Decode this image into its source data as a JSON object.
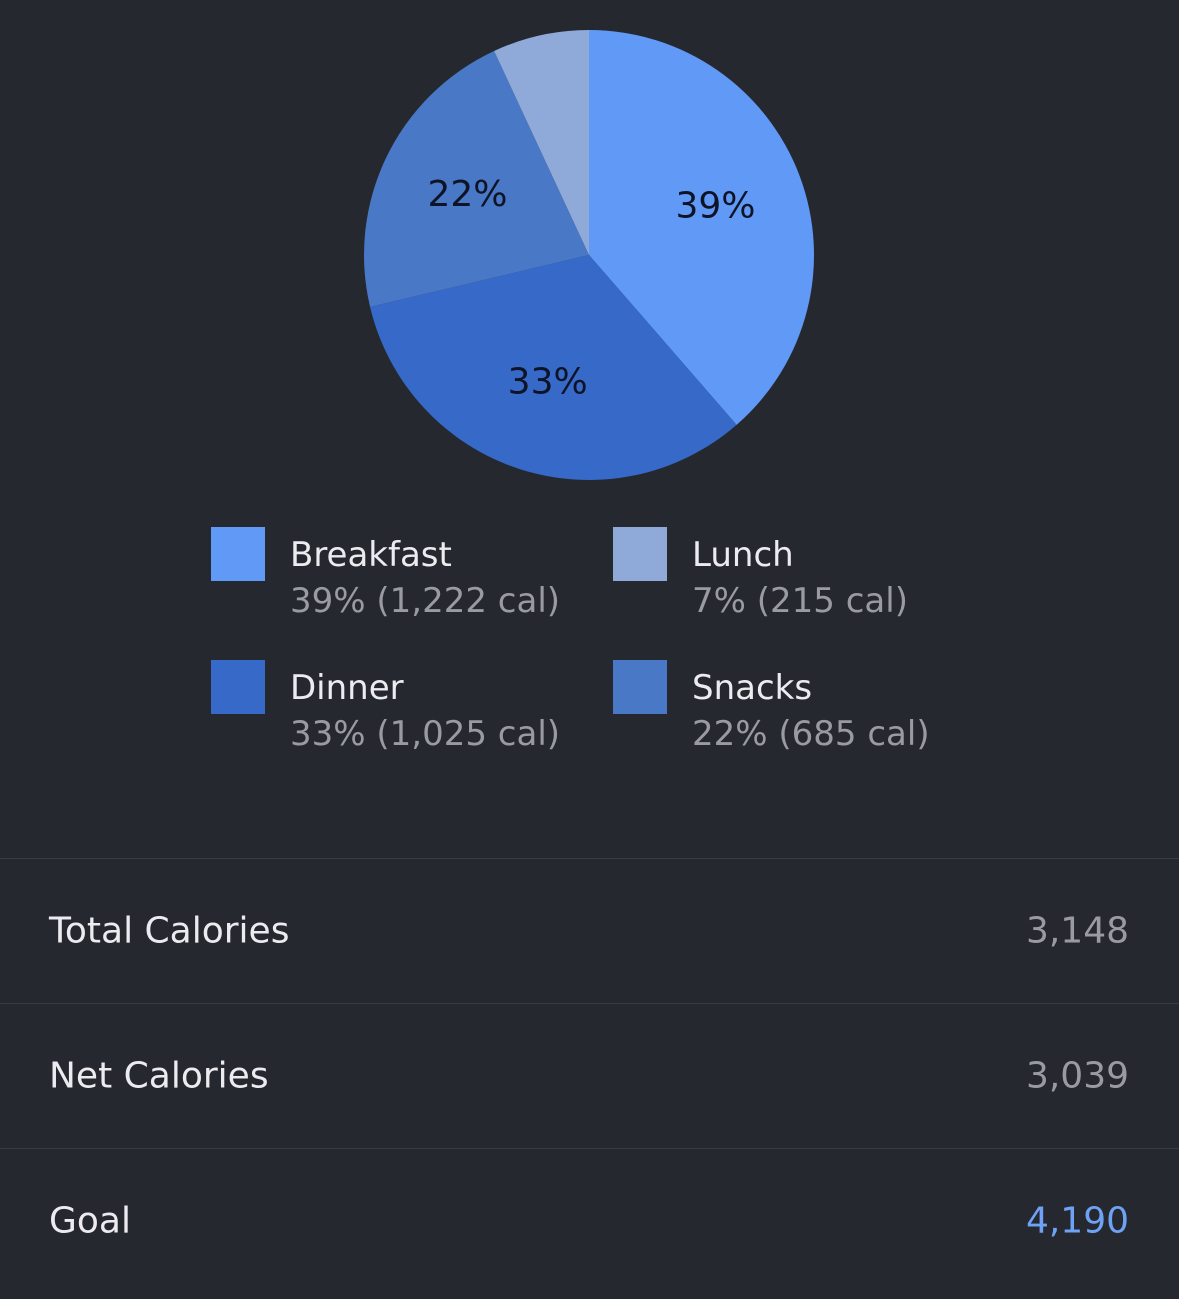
{
  "chart_data": {
    "type": "pie",
    "slices": [
      {
        "name": "Breakfast",
        "value": 39,
        "label": "39%",
        "color": "#6199f6"
      },
      {
        "name": "Dinner",
        "value": 33,
        "label": "33%",
        "color": "#3669c8"
      },
      {
        "name": "Snacks",
        "value": 22,
        "label": "22%",
        "color": "#4878c6"
      },
      {
        "name": "Lunch",
        "value": 7,
        "label": "",
        "color": "#8fa9d8"
      }
    ],
    "start_angle_deg": 0,
    "direction": "clockwise"
  },
  "legend": {
    "items": [
      {
        "name": "Breakfast",
        "detail": "39% (1,222 cal)",
        "color": "#6199f6"
      },
      {
        "name": "Lunch",
        "detail": "7% (215 cal)",
        "color": "#8fa9d8"
      },
      {
        "name": "Dinner",
        "detail": "33% (1,025 cal)",
        "color": "#3669c8"
      },
      {
        "name": "Snacks",
        "detail": "22% (685 cal)",
        "color": "#4878c6"
      }
    ]
  },
  "summary": {
    "total_label": "Total Calories",
    "total_value": "3,148",
    "net_label": "Net Calories",
    "net_value": "3,039",
    "goal_label": "Goal",
    "goal_value": "4,190",
    "goal_color": "#6ea2f5"
  }
}
